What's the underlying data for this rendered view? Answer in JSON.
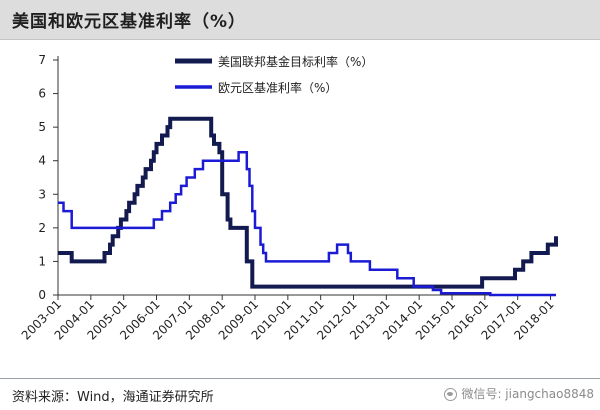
{
  "title": "美国和欧元区基准利率（%）",
  "source": "资料来源：Wind，海通证券研究所",
  "watermark": "微信号: jiangchao8848",
  "chart_data": {
    "type": "line",
    "title": "美国和欧元区基准利率（%）",
    "xlabel": "",
    "ylabel": "",
    "x_start": "2003-01",
    "x_end": "2018-03",
    "ylim": [
      0,
      7
    ],
    "yticks": [
      0,
      1,
      2,
      3,
      4,
      5,
      6,
      7
    ],
    "xticks": [
      "2003-01",
      "2004-01",
      "2005-01",
      "2006-01",
      "2007-01",
      "2008-01",
      "2009-01",
      "2010-01",
      "2011-01",
      "2012-01",
      "2013-01",
      "2014-01",
      "2015-01",
      "2016-01",
      "2017-01",
      "2018-01"
    ],
    "legend_position": "top-center",
    "grid": false,
    "series": [
      {
        "name": "美国联邦基金目标利率（%）",
        "color": "#121a50",
        "line_width": 4,
        "points": [
          [
            "2003-01",
            1.25
          ],
          [
            "2003-06",
            1.0
          ],
          [
            "2004-06",
            1.25
          ],
          [
            "2004-08",
            1.5
          ],
          [
            "2004-09",
            1.75
          ],
          [
            "2004-11",
            2.0
          ],
          [
            "2004-12",
            2.25
          ],
          [
            "2005-02",
            2.5
          ],
          [
            "2005-03",
            2.75
          ],
          [
            "2005-05",
            3.0
          ],
          [
            "2005-06",
            3.25
          ],
          [
            "2005-08",
            3.5
          ],
          [
            "2005-09",
            3.75
          ],
          [
            "2005-11",
            4.0
          ],
          [
            "2005-12",
            4.25
          ],
          [
            "2006-01",
            4.5
          ],
          [
            "2006-03",
            4.75
          ],
          [
            "2006-05",
            5.0
          ],
          [
            "2006-06",
            5.25
          ],
          [
            "2007-09",
            4.75
          ],
          [
            "2007-10",
            4.5
          ],
          [
            "2007-12",
            4.25
          ],
          [
            "2008-01",
            3.0
          ],
          [
            "2008-03",
            2.25
          ],
          [
            "2008-04",
            2.0
          ],
          [
            "2008-10",
            1.0
          ],
          [
            "2008-12",
            0.25
          ],
          [
            "2015-12",
            0.5
          ],
          [
            "2016-12",
            0.75
          ],
          [
            "2017-03",
            1.0
          ],
          [
            "2017-06",
            1.25
          ],
          [
            "2017-12",
            1.5
          ],
          [
            "2018-03",
            1.75
          ]
        ]
      },
      {
        "name": "欧元区基准利率（%）",
        "color": "#1b1bd6",
        "line_width": 2.5,
        "points": [
          [
            "2003-01",
            2.75
          ],
          [
            "2003-03",
            2.5
          ],
          [
            "2003-06",
            2.0
          ],
          [
            "2005-12",
            2.25
          ],
          [
            "2006-03",
            2.5
          ],
          [
            "2006-06",
            2.75
          ],
          [
            "2006-08",
            3.0
          ],
          [
            "2006-10",
            3.25
          ],
          [
            "2006-12",
            3.5
          ],
          [
            "2007-03",
            3.75
          ],
          [
            "2007-06",
            4.0
          ],
          [
            "2008-07",
            4.25
          ],
          [
            "2008-10",
            3.75
          ],
          [
            "2008-11",
            3.25
          ],
          [
            "2008-12",
            2.5
          ],
          [
            "2009-01",
            2.0
          ],
          [
            "2009-03",
            1.5
          ],
          [
            "2009-04",
            1.25
          ],
          [
            "2009-05",
            1.0
          ],
          [
            "2011-04",
            1.25
          ],
          [
            "2011-07",
            1.5
          ],
          [
            "2011-11",
            1.25
          ],
          [
            "2011-12",
            1.0
          ],
          [
            "2012-07",
            0.75
          ],
          [
            "2013-05",
            0.5
          ],
          [
            "2013-11",
            0.25
          ],
          [
            "2014-06",
            0.15
          ],
          [
            "2014-09",
            0.05
          ],
          [
            "2016-03",
            0.0
          ]
        ]
      }
    ]
  }
}
